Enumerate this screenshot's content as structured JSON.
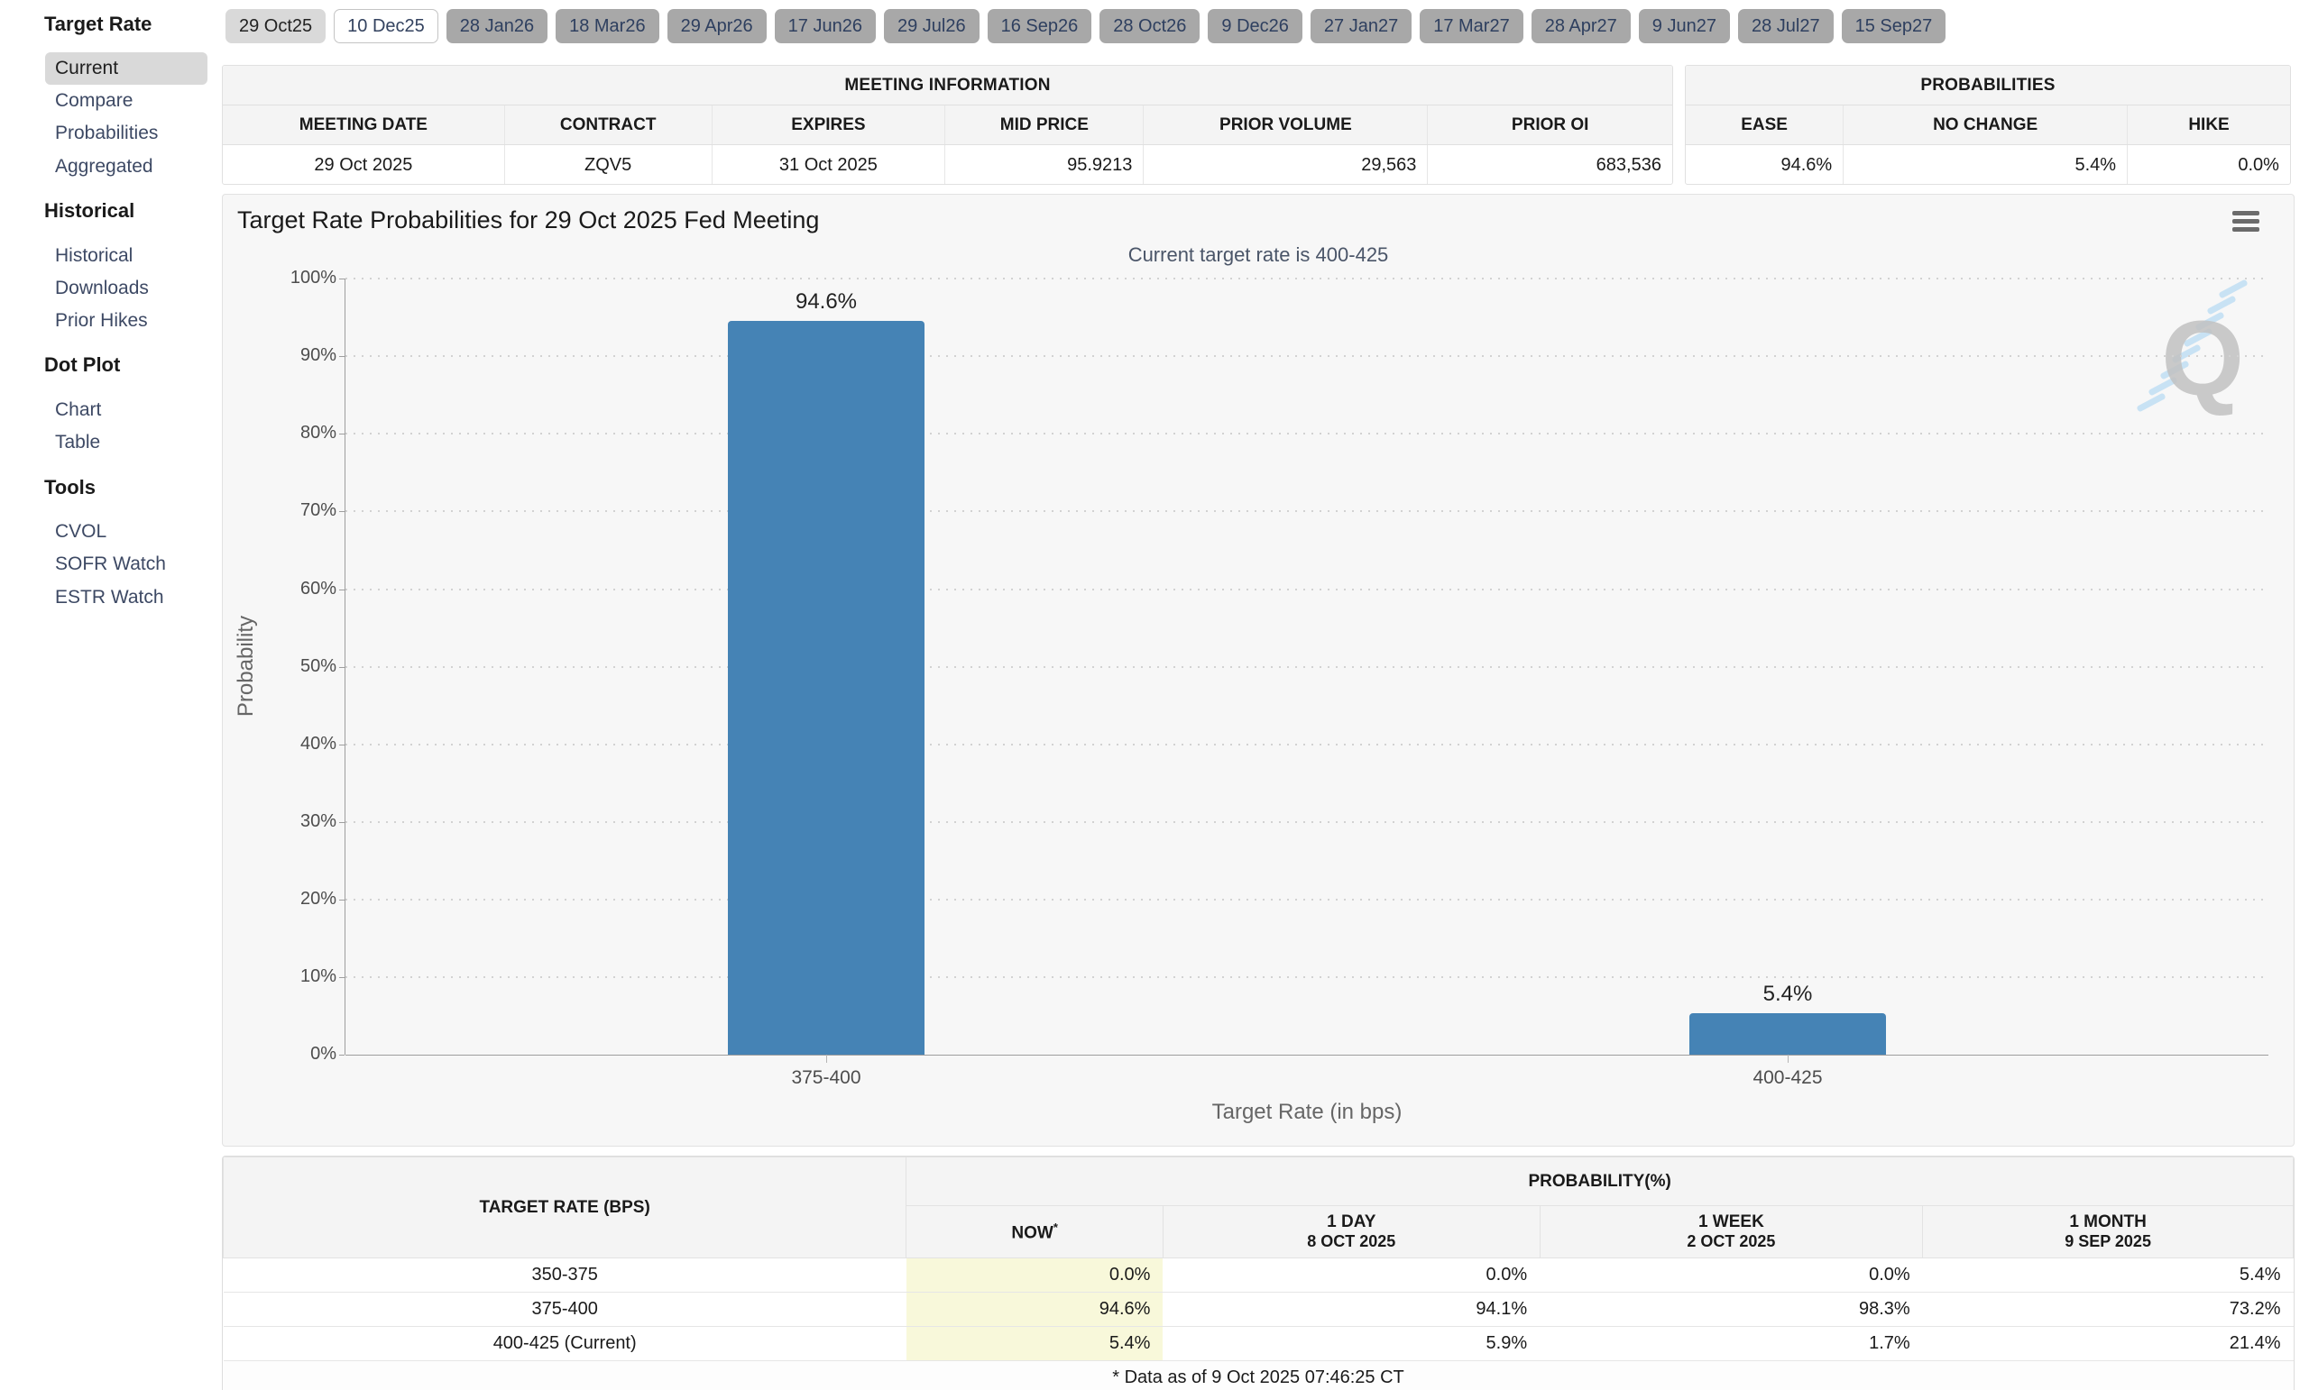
{
  "tabs": [
    {
      "label": "29 Oct25",
      "variant": "past"
    },
    {
      "label": "10 Dec25",
      "variant": "selected"
    },
    {
      "label": "28 Jan26",
      "variant": "future"
    },
    {
      "label": "18 Mar26",
      "variant": "future"
    },
    {
      "label": "29 Apr26",
      "variant": "future"
    },
    {
      "label": "17 Jun26",
      "variant": "future"
    },
    {
      "label": "29 Jul26",
      "variant": "future"
    },
    {
      "label": "16 Sep26",
      "variant": "future"
    },
    {
      "label": "28 Oct26",
      "variant": "future"
    },
    {
      "label": "9 Dec26",
      "variant": "future"
    },
    {
      "label": "27 Jan27",
      "variant": "future"
    },
    {
      "label": "17 Mar27",
      "variant": "future"
    },
    {
      "label": "28 Apr27",
      "variant": "future"
    },
    {
      "label": "9 Jun27",
      "variant": "future"
    },
    {
      "label": "28 Jul27",
      "variant": "future"
    },
    {
      "label": "15 Sep27",
      "variant": "future"
    }
  ],
  "sidebar": {
    "selected_item": "Current",
    "sections": [
      {
        "title": "Target Rate",
        "items": [
          "Current",
          "Compare",
          "Probabilities",
          "Aggregated"
        ]
      },
      {
        "title": "Historical",
        "items": [
          "Historical",
          "Downloads",
          "Prior Hikes"
        ]
      },
      {
        "title": "Dot Plot",
        "items": [
          "Chart",
          "Table"
        ]
      },
      {
        "title": "Tools",
        "items": [
          "CVOL",
          "SOFR Watch",
          "ESTR Watch"
        ]
      }
    ]
  },
  "meeting_info": {
    "title": "MEETING INFORMATION",
    "headers": [
      "MEETING DATE",
      "CONTRACT",
      "EXPIRES",
      "MID PRICE",
      "PRIOR VOLUME",
      "PRIOR OI"
    ],
    "values": [
      "29 Oct 2025",
      "ZQV5",
      "31 Oct 2025",
      "95.9213",
      "29,563",
      "683,536"
    ]
  },
  "probabilities_panel": {
    "title": "PROBABILITIES",
    "headers": [
      "EASE",
      "NO CHANGE",
      "HIKE"
    ],
    "values": [
      "94.6%",
      "5.4%",
      "0.0%"
    ]
  },
  "chart": {
    "title": "Target Rate Probabilities for 29 Oct 2025 Fed Meeting",
    "subtitle": "Current target rate is 400-425",
    "ylabel": "Probability",
    "xlabel": "Target Rate (in bps)",
    "yticks": [
      "100%",
      "90%",
      "80%",
      "70%",
      "60%",
      "50%",
      "40%",
      "30%",
      "20%",
      "10%",
      "0%"
    ],
    "menu_icon": "hamburger-icon",
    "watermark_letter": "Q"
  },
  "chart_data": {
    "type": "bar",
    "title": "Target Rate Probabilities for 29 Oct 2025 Fed Meeting",
    "subtitle": "Current target rate is 400-425",
    "categories": [
      "375-400",
      "400-425"
    ],
    "values": [
      94.6,
      5.4
    ],
    "labels": [
      "94.6%",
      "5.4%"
    ],
    "xlabel": "Target Rate (in bps)",
    "ylabel": "Probability",
    "ylim": [
      0,
      100
    ],
    "grid": "dotted-horizontal",
    "legend": "none",
    "bar_color": "#4583b5"
  },
  "prob_table": {
    "col1_header": "TARGET RATE (BPS)",
    "group_header": "PROBABILITY(%)",
    "subheaders": [
      {
        "line1": "NOW",
        "sup": "*",
        "line2": ""
      },
      {
        "line1": "1 DAY",
        "line2": "8 OCT 2025"
      },
      {
        "line1": "1 WEEK",
        "line2": "2 OCT 2025"
      },
      {
        "line1": "1 MONTH",
        "line2": "9 SEP 2025"
      }
    ],
    "rows": [
      {
        "rate": "350-375",
        "now": "0.0%",
        "day": "0.0%",
        "week": "0.0%",
        "month": "5.4%"
      },
      {
        "rate": "375-400",
        "now": "94.6%",
        "day": "94.1%",
        "week": "98.3%",
        "month": "73.2%"
      },
      {
        "rate": "400-425 (Current)",
        "now": "5.4%",
        "day": "5.9%",
        "week": "1.7%",
        "month": "21.4%"
      }
    ],
    "footnote": "* Data as of 9 Oct 2025 07:46:25 CT"
  },
  "colors": {
    "bar": "#4583b5",
    "now_column_highlight": "#f8f8da",
    "selected_sidebar_bg": "#d9d9d9",
    "tab_future_bg": "#a8a8a8",
    "panel_header_bg": "#f4f4f4",
    "chart_bg": "#f7f7f7"
  }
}
